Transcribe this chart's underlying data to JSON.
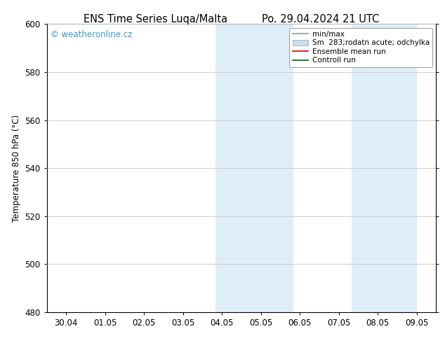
{
  "title_left": "ENS Time Series Luqa/Malta",
  "title_right": "Po. 29.04.2024 21 UTC",
  "ylabel": "Temperature 850 hPa (°C)",
  "ylim": [
    480,
    600
  ],
  "yticks": [
    480,
    500,
    520,
    540,
    560,
    580,
    600
  ],
  "xtick_labels": [
    "30.04",
    "01.05",
    "02.05",
    "03.05",
    "04.05",
    "05.05",
    "06.05",
    "07.05",
    "08.05",
    "09.05"
  ],
  "xlim": [
    -0.5,
    9.5
  ],
  "bg_color": "#ffffff",
  "plot_bg_color": "#ffffff",
  "shaded_bands": [
    {
      "x_start": 3.83,
      "x_end": 5.83,
      "color": "#ddeef8"
    },
    {
      "x_start": 7.33,
      "x_end": 9.0,
      "color": "#ddeef8"
    }
  ],
  "watermark_text": "© weatheronline.cz",
  "watermark_color": "#3399cc",
  "legend_entries": [
    {
      "label": "min/max",
      "color": "#aaaaaa",
      "type": "line",
      "linewidth": 1.5
    },
    {
      "label": "Sm  283;rodatn acute; odchylka",
      "color": "#c8dff0",
      "type": "patch"
    },
    {
      "label": "Ensemble mean run",
      "color": "#dd0000",
      "type": "line",
      "linewidth": 1.2
    },
    {
      "label": "Controll run",
      "color": "#006600",
      "type": "line",
      "linewidth": 1.2
    }
  ],
  "grid_color": "#cccccc",
  "spine_color": "#000000",
  "title_fontsize": 10.5,
  "tick_fontsize": 8.5,
  "ylabel_fontsize": 8.5,
  "legend_fontsize": 7.5
}
